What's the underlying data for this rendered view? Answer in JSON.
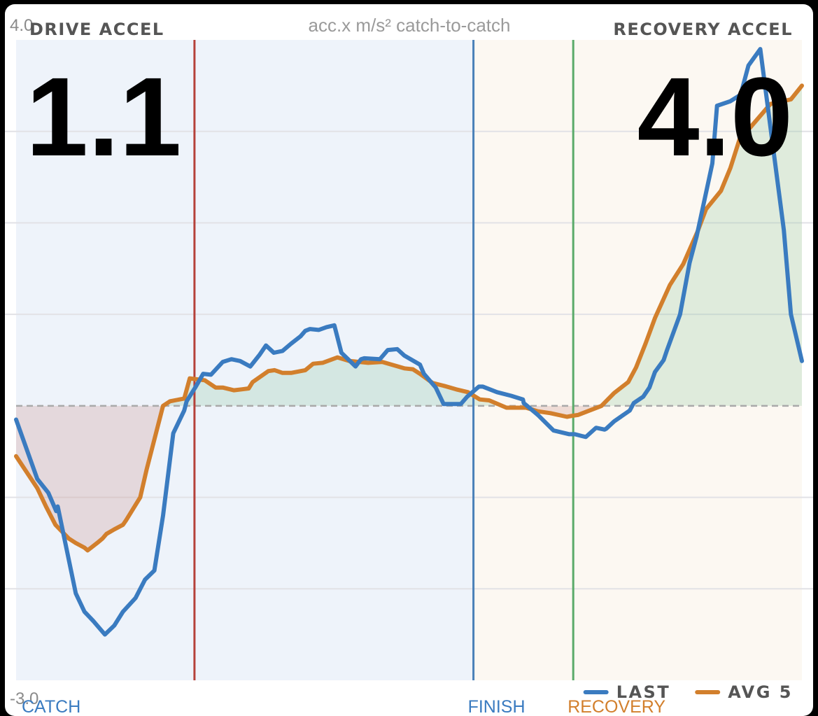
{
  "chart_data": {
    "type": "line",
    "title": "acc.x m/s² catch-to-catch",
    "ylim": [
      -3.0,
      4.0
    ],
    "y_tick_labels": [
      "4.0",
      "-3.0"
    ],
    "grid": true,
    "legend_position": "bottom-right",
    "zero_line": "dashed",
    "panels": {
      "drive": {
        "label": "DRIVE ACCEL",
        "value": "1.1"
      },
      "recovery": {
        "label": "RECOVERY ACCEL",
        "value": "4.0"
      }
    },
    "phase_markers": [
      {
        "label": "CATCH",
        "x": 0.0,
        "color": "#3a7bc0"
      },
      {
        "label": "FINISH",
        "x": 0.582,
        "color": "#3a7bc0"
      },
      {
        "label": "RECOVERY",
        "x": 0.709,
        "color": "#d27f2c"
      }
    ],
    "vertical_lines": [
      {
        "x": 0.227,
        "color": "#b5413a"
      },
      {
        "x": 0.582,
        "color": "#4a80b8"
      },
      {
        "x": 0.709,
        "color": "#5aab6a"
      }
    ],
    "phase_regions": [
      {
        "from": 0.0,
        "to": 0.582,
        "fill": "#eef3fa"
      },
      {
        "from": 0.582,
        "to": 1.0,
        "fill": "#fcf8f2"
      }
    ],
    "series": [
      {
        "name": "LAST",
        "color": "#3a7bc0",
        "x": [
          0.0,
          0.027,
          0.041,
          0.051,
          0.053,
          0.076,
          0.087,
          0.098,
          0.113,
          0.125,
          0.136,
          0.152,
          0.164,
          0.176,
          0.187,
          0.2,
          0.214,
          0.217,
          0.228,
          0.238,
          0.248,
          0.263,
          0.274,
          0.285,
          0.298,
          0.31,
          0.318,
          0.328,
          0.339,
          0.35,
          0.362,
          0.368,
          0.374,
          0.385,
          0.395,
          0.405,
          0.414,
          0.432,
          0.439,
          0.443,
          0.463,
          0.473,
          0.485,
          0.494,
          0.514,
          0.519,
          0.534,
          0.544,
          0.548,
          0.566,
          0.574,
          0.589,
          0.594,
          0.612,
          0.63,
          0.645,
          0.646,
          0.664,
          0.684,
          0.704,
          0.711,
          0.72,
          0.725,
          0.738,
          0.749,
          0.751,
          0.761,
          0.781,
          0.786,
          0.798,
          0.806,
          0.813,
          0.824,
          0.828,
          0.845,
          0.857,
          0.866,
          0.886,
          0.892,
          0.909,
          0.922,
          0.932,
          0.947,
          0.977,
          0.986,
          1.0
        ],
        "y": [
          -0.15,
          -0.8,
          -0.95,
          -1.15,
          -1.1,
          -2.05,
          -2.25,
          -2.35,
          -2.5,
          -2.4,
          -2.25,
          -2.1,
          -1.9,
          -1.8,
          -1.2,
          -0.3,
          -0.05,
          0.05,
          0.2,
          0.35,
          0.34,
          0.48,
          0.51,
          0.49,
          0.43,
          0.56,
          0.66,
          0.58,
          0.6,
          0.68,
          0.76,
          0.82,
          0.84,
          0.83,
          0.86,
          0.88,
          0.58,
          0.43,
          0.51,
          0.52,
          0.51,
          0.61,
          0.62,
          0.55,
          0.45,
          0.35,
          0.2,
          0.02,
          0.02,
          0.02,
          0.1,
          0.21,
          0.21,
          0.15,
          0.11,
          0.07,
          0.03,
          -0.1,
          -0.27,
          -0.31,
          -0.31,
          -0.33,
          -0.34,
          -0.24,
          -0.26,
          -0.25,
          -0.17,
          -0.05,
          0.03,
          0.1,
          0.2,
          0.37,
          0.5,
          0.6,
          1.0,
          1.56,
          1.85,
          2.65,
          3.28,
          3.33,
          3.4,
          3.72,
          3.9,
          1.92,
          1.0,
          0.49
        ]
      },
      {
        "name": "AVG 5",
        "color": "#d27f2c",
        "x": [
          0.0,
          0.027,
          0.038,
          0.05,
          0.067,
          0.076,
          0.087,
          0.091,
          0.103,
          0.11,
          0.115,
          0.125,
          0.136,
          0.14,
          0.158,
          0.166,
          0.187,
          0.196,
          0.214,
          0.221,
          0.24,
          0.254,
          0.263,
          0.277,
          0.287,
          0.296,
          0.301,
          0.321,
          0.329,
          0.339,
          0.35,
          0.368,
          0.378,
          0.39,
          0.409,
          0.424,
          0.437,
          0.448,
          0.466,
          0.486,
          0.494,
          0.505,
          0.514,
          0.53,
          0.544,
          0.56,
          0.575,
          0.59,
          0.602,
          0.624,
          0.649,
          0.664,
          0.68,
          0.701,
          0.707,
          0.715,
          0.745,
          0.761,
          0.779,
          0.789,
          0.801,
          0.813,
          0.832,
          0.849,
          0.867,
          0.878,
          0.897,
          0.909,
          0.922,
          0.934,
          0.96,
          0.986,
          1.0
        ],
        "y": [
          -0.55,
          -0.9,
          -1.1,
          -1.3,
          -1.45,
          -1.5,
          -1.55,
          -1.58,
          -1.5,
          -1.45,
          -1.4,
          -1.35,
          -1.3,
          -1.25,
          -1.0,
          -0.7,
          0.0,
          0.05,
          0.08,
          0.3,
          0.28,
          0.2,
          0.2,
          0.17,
          0.18,
          0.19,
          0.26,
          0.38,
          0.39,
          0.36,
          0.36,
          0.39,
          0.46,
          0.47,
          0.53,
          0.49,
          0.48,
          0.47,
          0.48,
          0.43,
          0.41,
          0.4,
          0.35,
          0.25,
          0.22,
          0.18,
          0.15,
          0.07,
          0.06,
          -0.02,
          -0.02,
          -0.06,
          -0.08,
          -0.12,
          -0.11,
          -0.1,
          0.0,
          0.14,
          0.26,
          0.42,
          0.68,
          0.96,
          1.32,
          1.55,
          1.9,
          2.15,
          2.35,
          2.6,
          2.95,
          3.04,
          3.3,
          3.35,
          3.5
        ]
      }
    ]
  }
}
